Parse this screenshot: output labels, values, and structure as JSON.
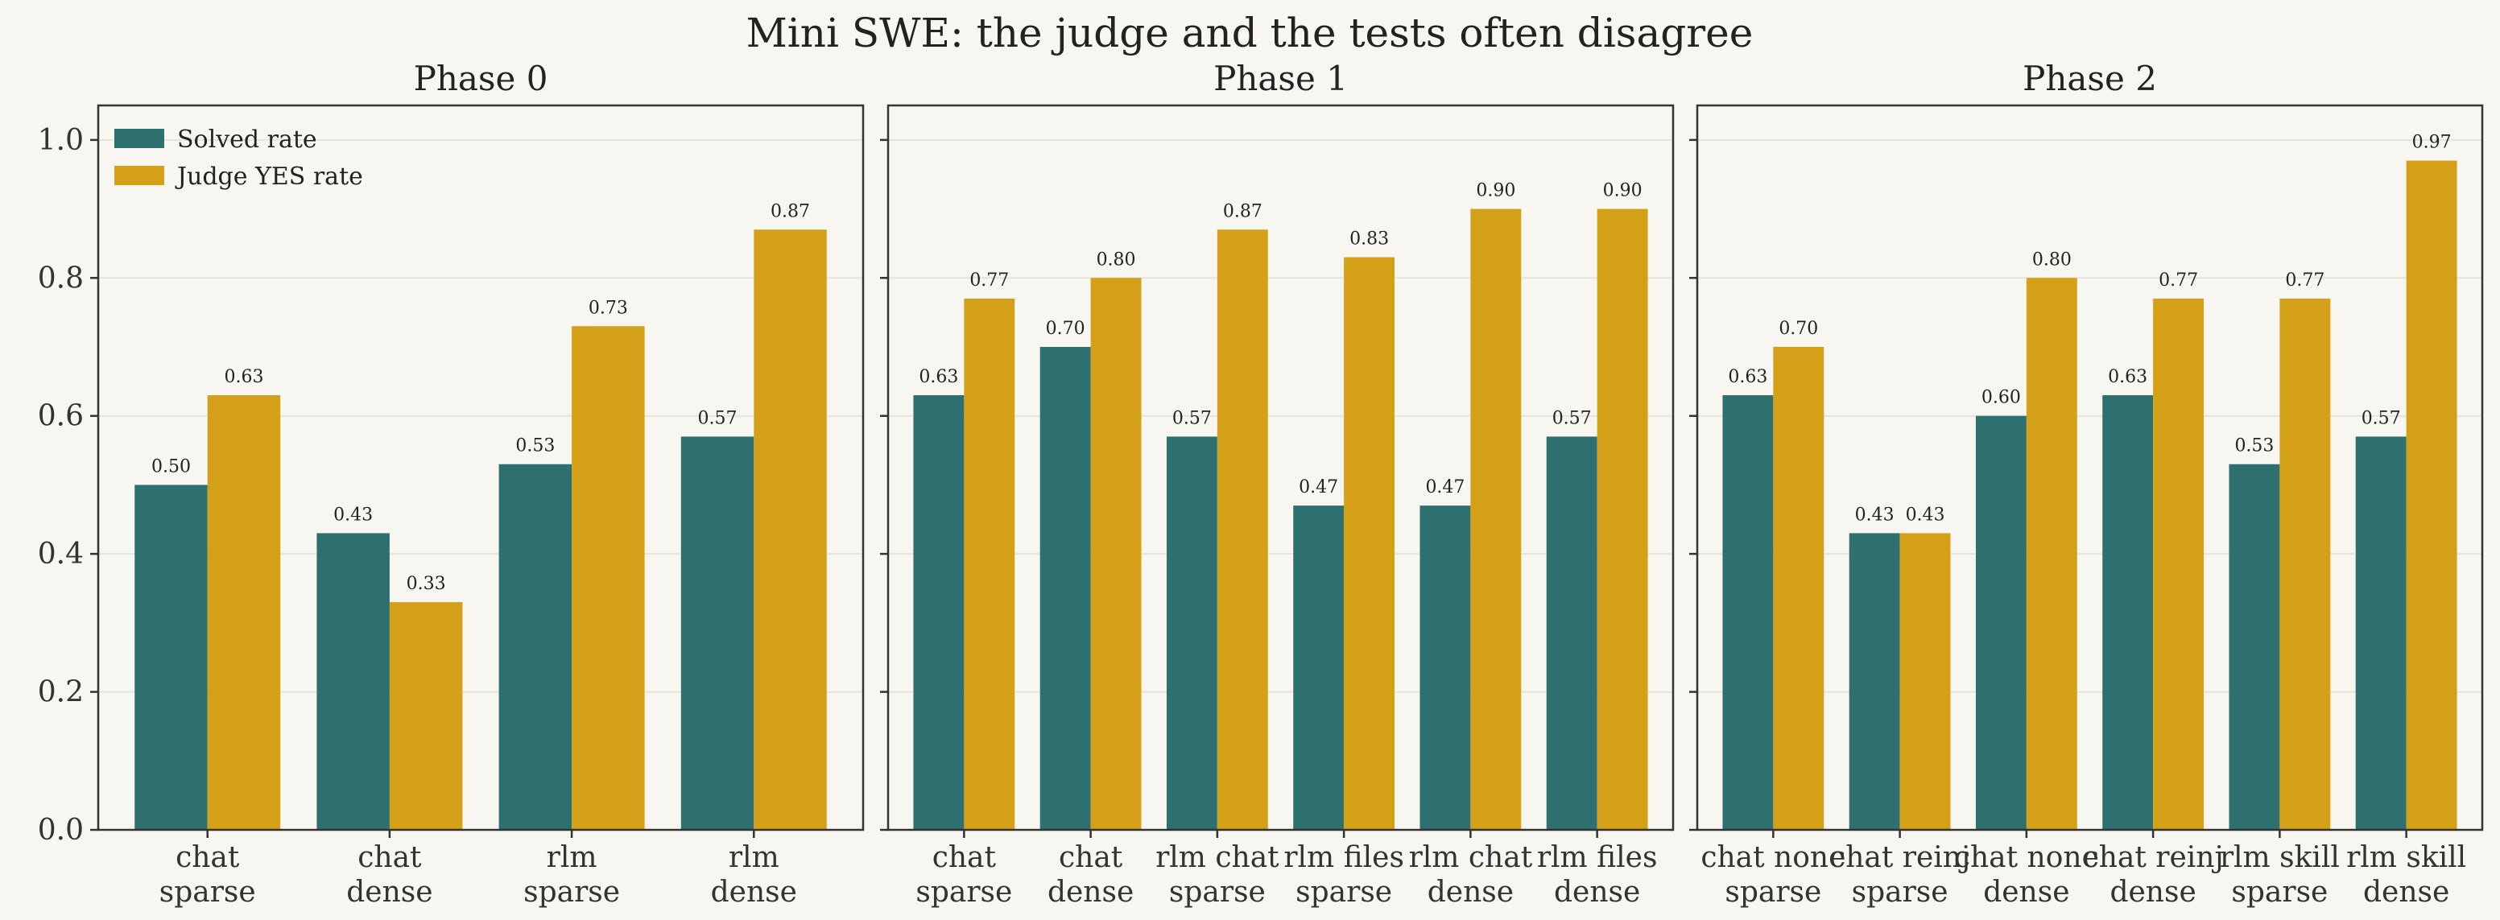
{
  "figure_title": "Mini SWE: the judge and the tests often disagree",
  "colors": {
    "solved": "#2e7070",
    "judge": "#d4a017",
    "background": "#f8f6f0",
    "grid": "#e6e3da"
  },
  "chart_data": [
    {
      "type": "bar",
      "title": "Phase 0",
      "categories": [
        [
          "chat",
          "sparse"
        ],
        [
          "chat",
          "dense"
        ],
        [
          "rlm",
          "sparse"
        ],
        [
          "rlm",
          "dense"
        ]
      ],
      "series": [
        {
          "name": "Solved rate",
          "values": [
            0.5,
            0.43,
            0.53,
            0.57
          ],
          "labels": [
            "0.50",
            "0.43",
            "0.53",
            "0.57"
          ]
        },
        {
          "name": "Judge YES rate",
          "values": [
            0.63,
            0.33,
            0.73,
            0.87
          ],
          "labels": [
            "0.63",
            "0.33",
            "0.73",
            "0.87"
          ]
        }
      ],
      "ylim": [
        0,
        1.05
      ],
      "yticks": [
        0.0,
        0.2,
        0.4,
        0.6,
        0.8,
        1.0
      ],
      "ytick_labels": [
        "0.0",
        "0.2",
        "0.4",
        "0.6",
        "0.8",
        "1.0"
      ],
      "show_ytick_labels": true,
      "legend": "top-left",
      "grid": true
    },
    {
      "type": "bar",
      "title": "Phase 1",
      "categories": [
        [
          "chat",
          "sparse"
        ],
        [
          "chat",
          "dense"
        ],
        [
          "rlm chat",
          "sparse"
        ],
        [
          "rlm files",
          "sparse"
        ],
        [
          "rlm chat",
          "dense"
        ],
        [
          "rlm files",
          "dense"
        ]
      ],
      "series": [
        {
          "name": "Solved rate",
          "values": [
            0.63,
            0.7,
            0.57,
            0.47,
            0.47,
            0.57
          ],
          "labels": [
            "0.63",
            "0.70",
            "0.57",
            "0.47",
            "0.47",
            "0.57"
          ]
        },
        {
          "name": "Judge YES rate",
          "values": [
            0.77,
            0.8,
            0.87,
            0.83,
            0.9,
            0.9
          ],
          "labels": [
            "0.77",
            "0.80",
            "0.87",
            "0.83",
            "0.90",
            "0.90"
          ]
        }
      ],
      "ylim": [
        0,
        1.05
      ],
      "yticks": [
        0.0,
        0.2,
        0.4,
        0.6,
        0.8,
        1.0
      ],
      "ytick_labels": [
        "0.0",
        "0.2",
        "0.4",
        "0.6",
        "0.8",
        "1.0"
      ],
      "show_ytick_labels": false,
      "legend": "",
      "grid": true
    },
    {
      "type": "bar",
      "title": "Phase 2",
      "categories": [
        [
          "chat none",
          "sparse"
        ],
        [
          "chat reinj",
          "sparse"
        ],
        [
          "chat none",
          "dense"
        ],
        [
          "chat reinj",
          "dense"
        ],
        [
          "rlm skill",
          "sparse"
        ],
        [
          "rlm skill",
          "dense"
        ]
      ],
      "series": [
        {
          "name": "Solved rate",
          "values": [
            0.63,
            0.43,
            0.6,
            0.63,
            0.53,
            0.57
          ],
          "labels": [
            "0.63",
            "0.43",
            "0.60",
            "0.63",
            "0.53",
            "0.57"
          ]
        },
        {
          "name": "Judge YES rate",
          "values": [
            0.7,
            0.43,
            0.8,
            0.77,
            0.77,
            0.97
          ],
          "labels": [
            "0.70",
            "0.43",
            "0.80",
            "0.77",
            "0.77",
            "0.97"
          ]
        }
      ],
      "ylim": [
        0,
        1.05
      ],
      "yticks": [
        0.0,
        0.2,
        0.4,
        0.6,
        0.8,
        1.0
      ],
      "ytick_labels": [
        "0.0",
        "0.2",
        "0.4",
        "0.6",
        "0.8",
        "1.0"
      ],
      "show_ytick_labels": false,
      "legend": "",
      "grid": true
    }
  ]
}
